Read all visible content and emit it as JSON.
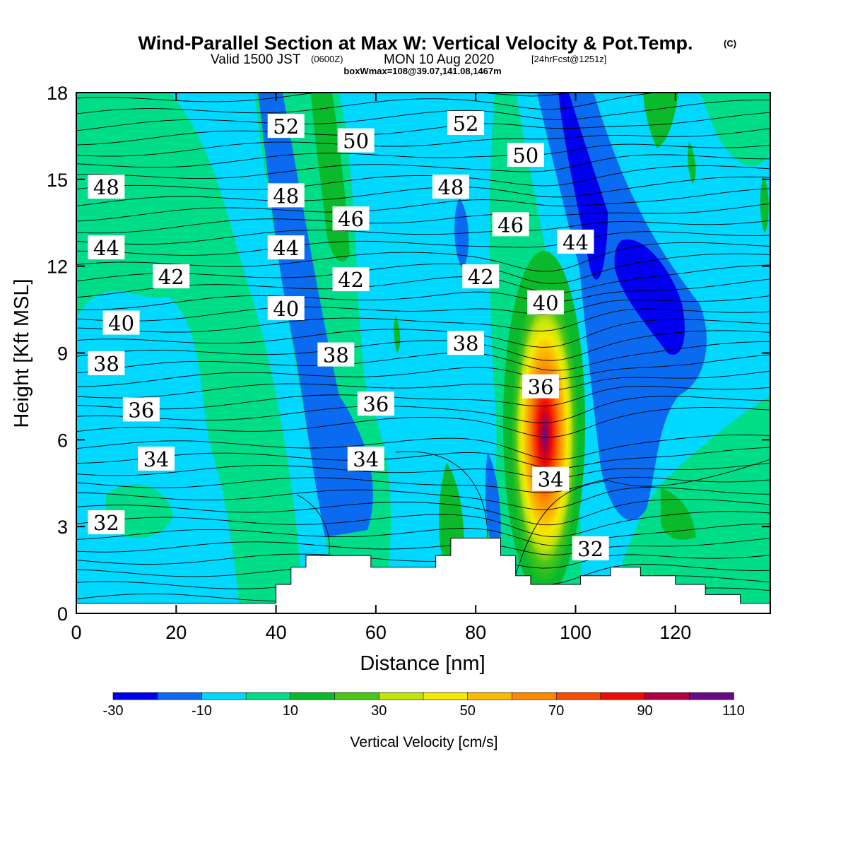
{
  "header": {
    "title": "Wind-Parallel Section at Max W: Vertical Velocity & Pot.Temp.",
    "copyright": "(C)",
    "valid_prefix": "Valid 1500 JST",
    "valid_utc": "(0600Z)",
    "valid_date": "MON 10 Aug 2020",
    "forecast": "[24hrFcst@1251z]",
    "boxwmax": "boxWmax=108@39.07,141.08,1467m"
  },
  "chart_data": {
    "type": "heatmap",
    "description_field": "vertical velocity (color-filled) with potential temperature contours",
    "xlabel": "Distance [nm]",
    "ylabel": "Height [Kft MSL]",
    "xlim": [
      0,
      139
    ],
    "ylim": [
      0,
      18
    ],
    "x_ticks": [
      0,
      20,
      40,
      60,
      80,
      100,
      120
    ],
    "y_ticks": [
      0,
      3,
      6,
      9,
      12,
      15,
      18
    ],
    "colorbar": {
      "label": "Vertical Velocity [cm/s]",
      "tick_labels": [
        "-30",
        "-10",
        "10",
        "30",
        "50",
        "70",
        "90",
        "110"
      ],
      "levels": [
        -30,
        -20,
        -10,
        0,
        10,
        20,
        30,
        40,
        50,
        60,
        70,
        80,
        90,
        100,
        110
      ],
      "colors": [
        "#0000ee",
        "#0a6bf0",
        "#00d8ff",
        "#00dd88",
        "#0aba2a",
        "#4cc418",
        "#c4e40a",
        "#f5ea00",
        "#fbba00",
        "#fb8a00",
        "#f84a00",
        "#f00a00",
        "#b00040",
        "#6a0a8a"
      ]
    },
    "max_w": {
      "value": 108,
      "x": 93,
      "y": 4.8
    },
    "theta_contour_labels": [
      {
        "text": "52",
        "x": 42,
        "y": 16.8
      },
      {
        "text": "52",
        "x": 78,
        "y": 16.9
      },
      {
        "text": "50",
        "x": 56,
        "y": 16.3
      },
      {
        "text": "50",
        "x": 90,
        "y": 15.8
      },
      {
        "text": "48",
        "x": 6,
        "y": 14.7
      },
      {
        "text": "48",
        "x": 42,
        "y": 14.4
      },
      {
        "text": "48",
        "x": 75,
        "y": 14.7
      },
      {
        "text": "46",
        "x": 55,
        "y": 13.6
      },
      {
        "text": "46",
        "x": 87,
        "y": 13.4
      },
      {
        "text": "44",
        "x": 6,
        "y": 12.6
      },
      {
        "text": "44",
        "x": 42,
        "y": 12.6
      },
      {
        "text": "44",
        "x": 100,
        "y": 12.8
      },
      {
        "text": "42",
        "x": 19,
        "y": 11.6
      },
      {
        "text": "42",
        "x": 55,
        "y": 11.5
      },
      {
        "text": "42",
        "x": 81,
        "y": 11.6
      },
      {
        "text": "40",
        "x": 9,
        "y": 10.0
      },
      {
        "text": "40",
        "x": 42,
        "y": 10.5
      },
      {
        "text": "40",
        "x": 94,
        "y": 10.7
      },
      {
        "text": "38",
        "x": 6,
        "y": 8.6
      },
      {
        "text": "38",
        "x": 52,
        "y": 8.9
      },
      {
        "text": "38",
        "x": 78,
        "y": 9.3
      },
      {
        "text": "36",
        "x": 13,
        "y": 7.0
      },
      {
        "text": "36",
        "x": 60,
        "y": 7.2
      },
      {
        "text": "36",
        "x": 93,
        "y": 7.8
      },
      {
        "text": "34",
        "x": 16,
        "y": 5.3
      },
      {
        "text": "34",
        "x": 58,
        "y": 5.3
      },
      {
        "text": "34",
        "x": 95,
        "y": 4.6
      },
      {
        "text": "32",
        "x": 6,
        "y": 3.1
      },
      {
        "text": "32",
        "x": 103,
        "y": 2.2
      }
    ],
    "terrain_height_kft": [
      {
        "x": 0,
        "h": 0.35
      },
      {
        "x": 40,
        "h": 1.0
      },
      {
        "x": 43,
        "h": 1.6
      },
      {
        "x": 46,
        "h": 2.0
      },
      {
        "x": 59,
        "h": 1.6
      },
      {
        "x": 72,
        "h": 2.0
      },
      {
        "x": 75,
        "h": 2.6
      },
      {
        "x": 85,
        "h": 2.0
      },
      {
        "x": 88,
        "h": 1.3
      },
      {
        "x": 91,
        "h": 1.0
      },
      {
        "x": 96,
        "h": 1.0
      },
      {
        "x": 101,
        "h": 1.3
      },
      {
        "x": 107,
        "h": 1.6
      },
      {
        "x": 113,
        "h": 1.3
      },
      {
        "x": 120,
        "h": 1.0
      },
      {
        "x": 126,
        "h": 0.65
      },
      {
        "x": 133,
        "h": 0.35
      }
    ]
  }
}
